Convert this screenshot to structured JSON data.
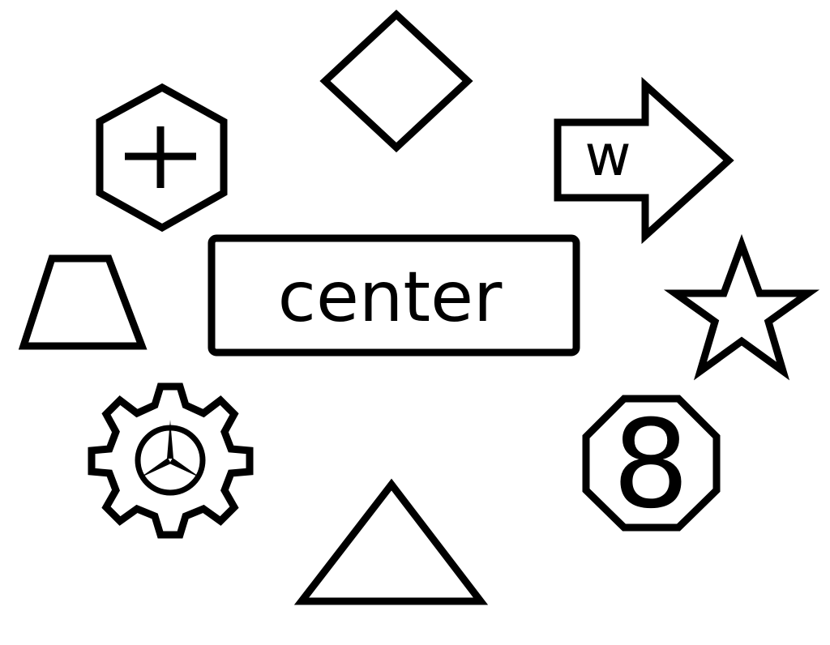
{
  "center": {
    "label": "center"
  },
  "shapes": {
    "hexagon": {
      "symbol": "+"
    },
    "arrow": {
      "label": "w"
    },
    "octagon": {
      "label": "8"
    }
  },
  "colors": {
    "stroke": "#000000",
    "background": "#ffffff"
  },
  "icons": [
    "diamond",
    "hexagon-plus",
    "arrow-right",
    "trapezoid",
    "star",
    "gear-with-emblem",
    "octagon-eight",
    "triangle"
  ]
}
